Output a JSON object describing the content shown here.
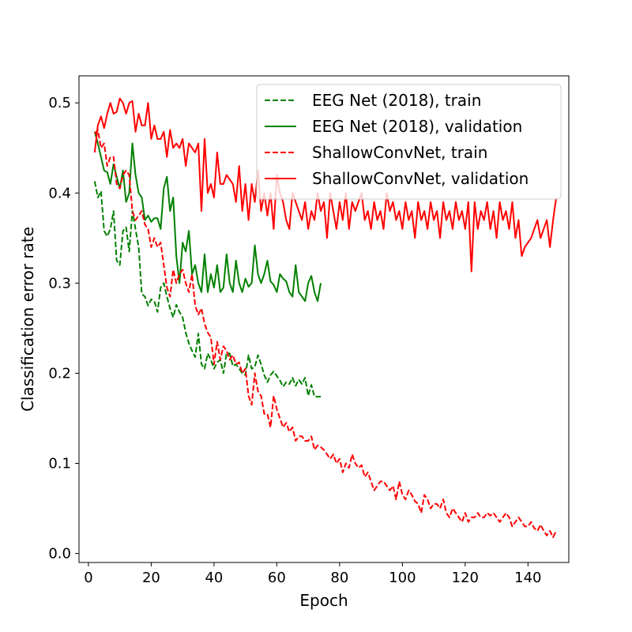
{
  "chart_data": {
    "type": "line",
    "title": "",
    "xlabel": "Epoch",
    "ylabel": "Classification error rate",
    "xlim": [
      -3,
      153
    ],
    "ylim": [
      -0.01,
      0.53
    ],
    "xticks": [
      0,
      20,
      40,
      60,
      80,
      100,
      120,
      140
    ],
    "yticks": [
      0.0,
      0.1,
      0.2,
      0.3,
      0.4,
      0.5
    ],
    "xtick_labels": [
      "0",
      "20",
      "40",
      "60",
      "80",
      "100",
      "120",
      "140"
    ],
    "ytick_labels": [
      "0.0",
      "0.1",
      "0.2",
      "0.3",
      "0.4",
      "0.5"
    ],
    "grid": false,
    "legend_position": "top-right",
    "series": [
      {
        "name": "EEG Net (2018), train",
        "color": "#008000",
        "dash": "dashed",
        "x": [
          2,
          3,
          4,
          5,
          6,
          7,
          8,
          9,
          10,
          11,
          12,
          13,
          14,
          15,
          16,
          17,
          18,
          19,
          20,
          21,
          22,
          23,
          24,
          25,
          26,
          27,
          28,
          29,
          30,
          31,
          32,
          33,
          34,
          35,
          36,
          37,
          38,
          39,
          40,
          41,
          42,
          43,
          44,
          45,
          46,
          47,
          48,
          49,
          50,
          51,
          52,
          53,
          54,
          55,
          56,
          57,
          58,
          59,
          60,
          61,
          62,
          63,
          64,
          65,
          66,
          67,
          68,
          69,
          70,
          71,
          72,
          73,
          74
        ],
        "y": [
          0.413,
          0.395,
          0.402,
          0.358,
          0.352,
          0.36,
          0.38,
          0.325,
          0.32,
          0.358,
          0.362,
          0.335,
          0.38,
          0.36,
          0.34,
          0.288,
          0.285,
          0.275,
          0.282,
          0.28,
          0.268,
          0.295,
          0.3,
          0.285,
          0.272,
          0.262,
          0.276,
          0.268,
          0.262,
          0.245,
          0.233,
          0.225,
          0.218,
          0.244,
          0.21,
          0.205,
          0.222,
          0.215,
          0.205,
          0.212,
          0.215,
          0.2,
          0.222,
          0.222,
          0.208,
          0.21,
          0.205,
          0.2,
          0.198,
          0.22,
          0.205,
          0.207,
          0.22,
          0.21,
          0.198,
          0.19,
          0.198,
          0.202,
          0.197,
          0.192,
          0.185,
          0.19,
          0.188,
          0.195,
          0.186,
          0.193,
          0.188,
          0.195,
          0.175,
          0.187,
          0.174,
          0.174,
          0.174
        ]
      },
      {
        "name": "EEG Net (2018), validation",
        "color": "#008000",
        "dash": "solid",
        "x": [
          2,
          3,
          4,
          5,
          6,
          7,
          8,
          9,
          10,
          11,
          12,
          13,
          14,
          15,
          16,
          17,
          18,
          19,
          20,
          21,
          22,
          23,
          24,
          25,
          26,
          27,
          28,
          29,
          30,
          31,
          32,
          33,
          34,
          35,
          36,
          37,
          38,
          39,
          40,
          41,
          42,
          43,
          44,
          45,
          46,
          47,
          48,
          49,
          50,
          51,
          52,
          53,
          54,
          55,
          56,
          57,
          58,
          59,
          60,
          61,
          62,
          63,
          64,
          65,
          66,
          67,
          68,
          69,
          70,
          71,
          72,
          73,
          74
        ],
        "y": [
          0.468,
          0.455,
          0.44,
          0.425,
          0.423,
          0.41,
          0.432,
          0.418,
          0.405,
          0.425,
          0.39,
          0.4,
          0.455,
          0.42,
          0.4,
          0.395,
          0.37,
          0.375,
          0.368,
          0.372,
          0.372,
          0.36,
          0.405,
          0.418,
          0.38,
          0.395,
          0.33,
          0.3,
          0.345,
          0.335,
          0.358,
          0.31,
          0.32,
          0.3,
          0.29,
          0.332,
          0.29,
          0.31,
          0.295,
          0.32,
          0.29,
          0.295,
          0.332,
          0.3,
          0.29,
          0.325,
          0.3,
          0.29,
          0.305,
          0.296,
          0.3,
          0.342,
          0.31,
          0.3,
          0.31,
          0.325,
          0.302,
          0.298,
          0.29,
          0.31,
          0.305,
          0.302,
          0.29,
          0.285,
          0.32,
          0.29,
          0.285,
          0.28,
          0.3,
          0.308,
          0.29,
          0.28,
          0.3
        ]
      },
      {
        "name": "ShallowConvNet, train",
        "color": "#ff0000",
        "dash": "dashed",
        "x": [
          2,
          3,
          4,
          5,
          6,
          7,
          8,
          9,
          10,
          11,
          12,
          13,
          14,
          15,
          16,
          17,
          18,
          19,
          20,
          21,
          22,
          23,
          24,
          25,
          26,
          27,
          28,
          29,
          30,
          31,
          32,
          33,
          34,
          35,
          36,
          37,
          38,
          39,
          40,
          41,
          42,
          43,
          44,
          45,
          46,
          47,
          48,
          49,
          50,
          51,
          52,
          53,
          54,
          55,
          56,
          57,
          58,
          59,
          60,
          61,
          62,
          63,
          64,
          65,
          66,
          67,
          68,
          69,
          70,
          71,
          72,
          73,
          74,
          75,
          76,
          77,
          78,
          79,
          80,
          81,
          82,
          83,
          84,
          85,
          86,
          87,
          88,
          89,
          90,
          91,
          92,
          93,
          94,
          95,
          96,
          97,
          98,
          99,
          100,
          101,
          102,
          103,
          104,
          105,
          106,
          107,
          108,
          109,
          110,
          111,
          112,
          113,
          114,
          115,
          116,
          117,
          118,
          119,
          120,
          121,
          122,
          123,
          124,
          125,
          126,
          127,
          128,
          129,
          130,
          131,
          132,
          133,
          134,
          135,
          136,
          137,
          138,
          139,
          140,
          141,
          142,
          143,
          144,
          145,
          146,
          147,
          148,
          149
        ],
        "y": [
          0.466,
          0.47,
          0.45,
          0.455,
          0.43,
          0.44,
          0.44,
          0.41,
          0.405,
          0.42,
          0.425,
          0.42,
          0.38,
          0.37,
          0.375,
          0.38,
          0.365,
          0.36,
          0.34,
          0.35,
          0.34,
          0.345,
          0.32,
          0.295,
          0.285,
          0.315,
          0.3,
          0.31,
          0.315,
          0.3,
          0.29,
          0.31,
          0.275,
          0.265,
          0.272,
          0.255,
          0.245,
          0.24,
          0.21,
          0.235,
          0.215,
          0.23,
          0.225,
          0.215,
          0.22,
          0.21,
          0.212,
          0.2,
          0.205,
          0.175,
          0.165,
          0.2,
          0.18,
          0.175,
          0.155,
          0.155,
          0.14,
          0.175,
          0.16,
          0.15,
          0.14,
          0.145,
          0.135,
          0.14,
          0.125,
          0.13,
          0.13,
          0.125,
          0.125,
          0.13,
          0.115,
          0.12,
          0.118,
          0.115,
          0.11,
          0.105,
          0.11,
          0.1,
          0.105,
          0.09,
          0.1,
          0.095,
          0.11,
          0.1,
          0.095,
          0.098,
          0.085,
          0.09,
          0.08,
          0.07,
          0.075,
          0.08,
          0.08,
          0.075,
          0.07,
          0.075,
          0.06,
          0.08,
          0.065,
          0.06,
          0.07,
          0.065,
          0.058,
          0.055,
          0.045,
          0.065,
          0.06,
          0.05,
          0.055,
          0.055,
          0.05,
          0.06,
          0.045,
          0.04,
          0.05,
          0.045,
          0.04,
          0.035,
          0.045,
          0.035,
          0.04,
          0.04,
          0.045,
          0.04,
          0.04,
          0.045,
          0.042,
          0.045,
          0.04,
          0.035,
          0.04,
          0.045,
          0.04,
          0.03,
          0.035,
          0.04,
          0.035,
          0.03,
          0.03,
          0.035,
          0.028,
          0.025,
          0.032,
          0.025,
          0.02,
          0.025,
          0.018,
          0.025
        ]
      },
      {
        "name": "ShallowConvNet, validation",
        "color": "#ff0000",
        "dash": "solid",
        "x": [
          2,
          3,
          4,
          5,
          6,
          7,
          8,
          9,
          10,
          11,
          12,
          13,
          14,
          15,
          16,
          17,
          18,
          19,
          20,
          21,
          22,
          23,
          24,
          25,
          26,
          27,
          28,
          29,
          30,
          31,
          32,
          33,
          34,
          35,
          36,
          37,
          38,
          39,
          40,
          41,
          42,
          43,
          44,
          45,
          46,
          47,
          48,
          49,
          50,
          51,
          52,
          53,
          54,
          55,
          56,
          57,
          58,
          59,
          60,
          61,
          62,
          63,
          64,
          65,
          66,
          67,
          68,
          69,
          70,
          71,
          72,
          73,
          74,
          75,
          76,
          77,
          78,
          79,
          80,
          81,
          82,
          83,
          84,
          85,
          86,
          87,
          88,
          89,
          90,
          91,
          92,
          93,
          94,
          95,
          96,
          97,
          98,
          99,
          100,
          101,
          102,
          103,
          104,
          105,
          106,
          107,
          108,
          109,
          110,
          111,
          112,
          113,
          114,
          115,
          116,
          117,
          118,
          119,
          120,
          121,
          122,
          123,
          124,
          125,
          126,
          127,
          128,
          129,
          130,
          131,
          132,
          133,
          134,
          135,
          136,
          137,
          138,
          139,
          140,
          141,
          142,
          143,
          144,
          145,
          146,
          147,
          148,
          149
        ],
        "y": [
          0.445,
          0.475,
          0.485,
          0.472,
          0.488,
          0.5,
          0.488,
          0.49,
          0.505,
          0.5,
          0.488,
          0.5,
          0.502,
          0.468,
          0.488,
          0.475,
          0.475,
          0.5,
          0.46,
          0.475,
          0.46,
          0.46,
          0.468,
          0.44,
          0.47,
          0.45,
          0.455,
          0.45,
          0.46,
          0.43,
          0.455,
          0.45,
          0.445,
          0.455,
          0.38,
          0.46,
          0.4,
          0.41,
          0.395,
          0.445,
          0.41,
          0.41,
          0.42,
          0.415,
          0.41,
          0.39,
          0.43,
          0.38,
          0.41,
          0.37,
          0.41,
          0.39,
          0.425,
          0.38,
          0.4,
          0.375,
          0.4,
          0.36,
          0.42,
          0.4,
          0.39,
          0.37,
          0.36,
          0.4,
          0.39,
          0.38,
          0.37,
          0.39,
          0.36,
          0.38,
          0.37,
          0.4,
          0.38,
          0.39,
          0.35,
          0.4,
          0.38,
          0.36,
          0.39,
          0.37,
          0.4,
          0.36,
          0.39,
          0.38,
          0.39,
          0.4,
          0.37,
          0.38,
          0.36,
          0.39,
          0.37,
          0.38,
          0.36,
          0.4,
          0.38,
          0.39,
          0.37,
          0.38,
          0.36,
          0.39,
          0.37,
          0.38,
          0.35,
          0.39,
          0.37,
          0.38,
          0.36,
          0.39,
          0.37,
          0.38,
          0.35,
          0.39,
          0.37,
          0.38,
          0.36,
          0.39,
          0.37,
          0.38,
          0.36,
          0.39,
          0.313,
          0.39,
          0.36,
          0.38,
          0.37,
          0.39,
          0.36,
          0.38,
          0.35,
          0.39,
          0.37,
          0.38,
          0.36,
          0.39,
          0.35,
          0.37,
          0.33,
          0.34,
          0.345,
          0.35,
          0.36,
          0.37,
          0.35,
          0.36,
          0.37,
          0.34,
          0.37,
          0.395
        ]
      }
    ]
  }
}
